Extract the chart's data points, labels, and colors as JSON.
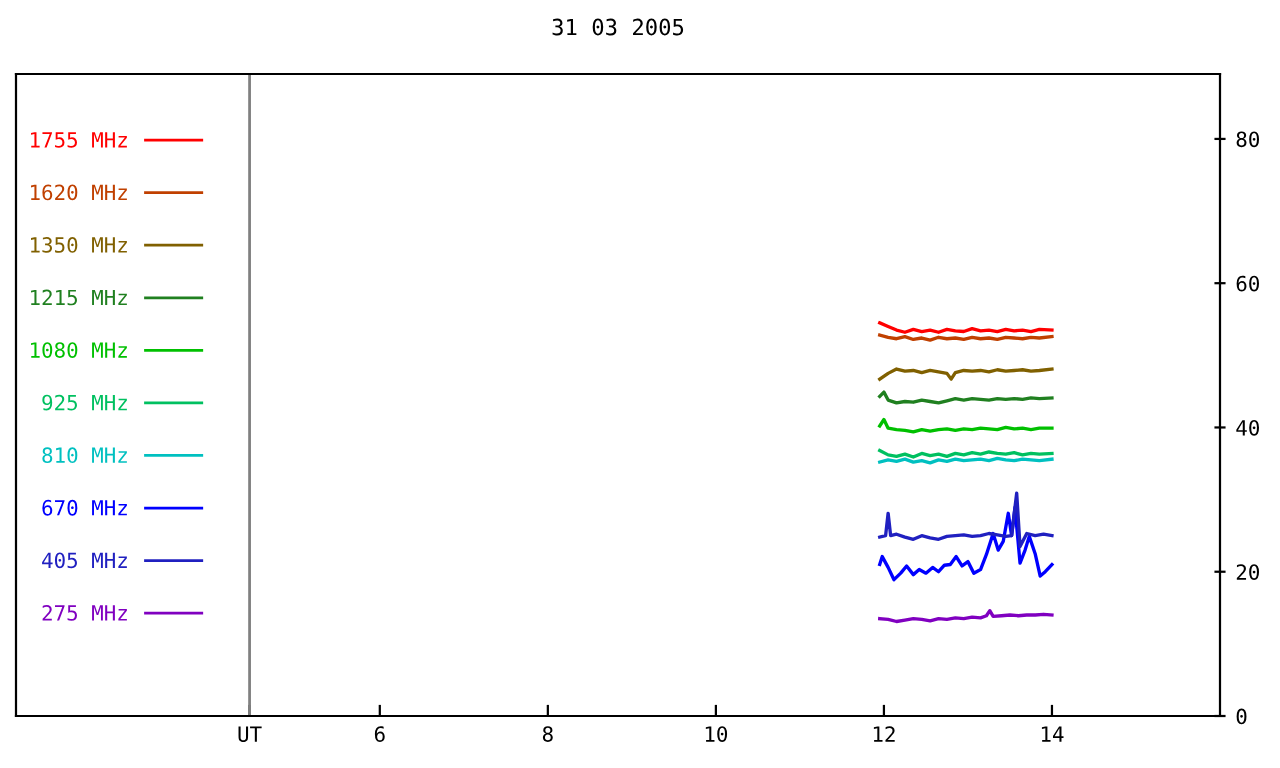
{
  "chart_data": {
    "type": "line",
    "title": "31 03 2005",
    "xlim": [
      1.67,
      16
    ],
    "xticks": [
      {
        "value": 4.45,
        "label": "UT"
      },
      6,
      8,
      10,
      12,
      14
    ],
    "ylim": [
      0,
      89
    ],
    "yticks": [
      0,
      20,
      40,
      60,
      80
    ],
    "ref_lines": [
      {
        "axis": "x",
        "value": 4.45,
        "label": null,
        "color": "#808080"
      }
    ],
    "legend": "left",
    "grid": false,
    "marker": "none",
    "line_style": "solid",
    "series": [
      {
        "name": "1755 MHz",
        "color": "#ff0000",
        "x": [
          11.95,
          12.05,
          12.15,
          12.25,
          12.35,
          12.45,
          12.55,
          12.65,
          12.75,
          12.85,
          12.95,
          13.05,
          13.15,
          13.25,
          13.35,
          13.45,
          13.55,
          13.65,
          13.75,
          13.85,
          14.0
        ],
        "values": [
          54.5,
          54.0,
          53.5,
          53.2,
          53.6,
          53.3,
          53.5,
          53.2,
          53.6,
          53.4,
          53.3,
          53.7,
          53.4,
          53.5,
          53.3,
          53.6,
          53.4,
          53.5,
          53.3,
          53.6,
          53.5
        ]
      },
      {
        "name": "1620 MHz",
        "color": "#c04000",
        "x": [
          11.95,
          12.05,
          12.15,
          12.25,
          12.35,
          12.45,
          12.55,
          12.65,
          12.75,
          12.85,
          12.95,
          13.05,
          13.15,
          13.25,
          13.35,
          13.45,
          13.55,
          13.65,
          13.75,
          13.85,
          14.0
        ],
        "values": [
          52.8,
          52.5,
          52.3,
          52.6,
          52.2,
          52.4,
          52.1,
          52.5,
          52.3,
          52.4,
          52.2,
          52.5,
          52.3,
          52.4,
          52.2,
          52.5,
          52.4,
          52.3,
          52.5,
          52.4,
          52.6
        ]
      },
      {
        "name": "1350 MHz",
        "color": "#806000",
        "x": [
          11.95,
          12.05,
          12.15,
          12.25,
          12.35,
          12.45,
          12.55,
          12.65,
          12.75,
          12.8,
          12.85,
          12.95,
          13.05,
          13.15,
          13.25,
          13.35,
          13.45,
          13.55,
          13.65,
          13.75,
          13.85,
          14.0
        ],
        "values": [
          46.7,
          47.5,
          48.1,
          47.8,
          47.9,
          47.6,
          47.9,
          47.7,
          47.5,
          46.7,
          47.6,
          47.9,
          47.8,
          47.9,
          47.7,
          48.0,
          47.8,
          47.9,
          48.0,
          47.8,
          47.9,
          48.1
        ]
      },
      {
        "name": "1215 MHz",
        "color": "#208020",
        "x": [
          11.95,
          12.0,
          12.05,
          12.15,
          12.25,
          12.35,
          12.45,
          12.55,
          12.65,
          12.75,
          12.85,
          12.95,
          13.05,
          13.15,
          13.25,
          13.35,
          13.45,
          13.55,
          13.65,
          13.75,
          13.85,
          14.0
        ],
        "values": [
          44.3,
          44.9,
          43.8,
          43.4,
          43.6,
          43.5,
          43.8,
          43.6,
          43.4,
          43.7,
          44.0,
          43.8,
          44.0,
          43.9,
          43.8,
          44.0,
          43.9,
          44.0,
          43.9,
          44.1,
          44.0,
          44.1
        ]
      },
      {
        "name": "1080 MHz",
        "color": "#00c000",
        "x": [
          11.95,
          12.0,
          12.05,
          12.15,
          12.25,
          12.35,
          12.45,
          12.55,
          12.65,
          12.75,
          12.85,
          12.95,
          13.05,
          13.15,
          13.25,
          13.35,
          13.45,
          13.55,
          13.65,
          13.75,
          13.85,
          14.0
        ],
        "values": [
          40.2,
          41.1,
          39.9,
          39.7,
          39.6,
          39.4,
          39.7,
          39.5,
          39.7,
          39.8,
          39.6,
          39.8,
          39.7,
          39.9,
          39.8,
          39.7,
          40.0,
          39.8,
          39.9,
          39.7,
          39.9,
          39.9
        ]
      },
      {
        "name": "925 MHz",
        "color": "#00c060",
        "x": [
          11.95,
          12.05,
          12.15,
          12.25,
          12.35,
          12.45,
          12.55,
          12.65,
          12.75,
          12.85,
          12.95,
          13.05,
          13.15,
          13.25,
          13.35,
          13.45,
          13.55,
          13.65,
          13.75,
          13.85,
          14.0
        ],
        "values": [
          36.8,
          36.2,
          36.0,
          36.3,
          35.9,
          36.4,
          36.1,
          36.3,
          36.0,
          36.4,
          36.2,
          36.5,
          36.3,
          36.6,
          36.4,
          36.3,
          36.5,
          36.2,
          36.4,
          36.3,
          36.4
        ]
      },
      {
        "name": "810 MHz",
        "color": "#00c0c0",
        "x": [
          11.95,
          12.05,
          12.15,
          12.25,
          12.35,
          12.45,
          12.55,
          12.65,
          12.75,
          12.85,
          12.95,
          13.05,
          13.15,
          13.25,
          13.35,
          13.45,
          13.55,
          13.65,
          13.75,
          13.85,
          14.0
        ],
        "values": [
          35.2,
          35.5,
          35.3,
          35.6,
          35.2,
          35.4,
          35.1,
          35.5,
          35.3,
          35.6,
          35.4,
          35.5,
          35.6,
          35.4,
          35.7,
          35.5,
          35.4,
          35.6,
          35.5,
          35.4,
          35.6
        ]
      },
      {
        "name": "670 MHz",
        "color": "#0000ff",
        "x": [
          11.95,
          11.98,
          12.05,
          12.12,
          12.2,
          12.27,
          12.35,
          12.42,
          12.5,
          12.58,
          12.65,
          12.72,
          12.79,
          12.86,
          12.93,
          13.0,
          13.07,
          13.15,
          13.22,
          13.3,
          13.36,
          13.42,
          13.48,
          13.52,
          13.56,
          13.62,
          13.68,
          13.73,
          13.8,
          13.86,
          13.92,
          14.0
        ],
        "values": [
          21.0,
          22.1,
          20.6,
          18.9,
          19.8,
          20.8,
          19.6,
          20.3,
          19.8,
          20.6,
          20.0,
          20.9,
          21.0,
          22.1,
          20.8,
          21.4,
          19.8,
          20.3,
          22.4,
          25.3,
          23.0,
          24.2,
          28.1,
          25.0,
          28.9,
          21.2,
          23.0,
          24.9,
          22.5,
          19.4,
          20.0,
          21.0
        ]
      },
      {
        "name": "405 MHz",
        "color": "#2020c0",
        "x": [
          11.95,
          12.02,
          12.05,
          12.08,
          12.15,
          12.25,
          12.35,
          12.45,
          12.55,
          12.65,
          12.75,
          12.85,
          12.95,
          13.05,
          13.15,
          13.25,
          13.35,
          13.45,
          13.52,
          13.58,
          13.62,
          13.7,
          13.8,
          13.9,
          14.0
        ],
        "values": [
          24.8,
          25.0,
          28.1,
          25.0,
          25.2,
          24.8,
          24.5,
          25.0,
          24.7,
          24.5,
          24.9,
          25.0,
          25.1,
          24.9,
          25.0,
          25.3,
          25.1,
          24.9,
          25.0,
          30.9,
          23.5,
          25.3,
          25.0,
          25.2,
          25.0
        ]
      },
      {
        "name": "275 MHz",
        "color": "#8000c0",
        "x": [
          11.95,
          12.05,
          12.15,
          12.25,
          12.35,
          12.45,
          12.55,
          12.65,
          12.75,
          12.85,
          12.95,
          13.05,
          13.15,
          13.22,
          13.26,
          13.3,
          13.4,
          13.5,
          13.6,
          13.7,
          13.8,
          13.9,
          14.0
        ],
        "values": [
          13.5,
          13.4,
          13.1,
          13.3,
          13.5,
          13.4,
          13.2,
          13.5,
          13.4,
          13.6,
          13.5,
          13.7,
          13.6,
          13.9,
          14.6,
          13.8,
          13.9,
          14.0,
          13.9,
          14.0,
          14.0,
          14.1,
          14.0
        ]
      }
    ]
  }
}
